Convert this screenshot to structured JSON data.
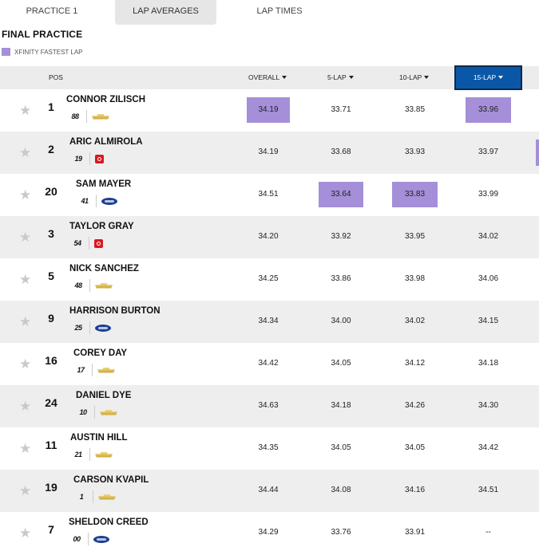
{
  "tabs": [
    {
      "label": "PRACTICE 1",
      "active": false
    },
    {
      "label": "LAP AVERAGES",
      "active": true
    },
    {
      "label": "LAP TIMES",
      "active": false
    }
  ],
  "session_title": "FINAL PRACTICE",
  "legend": {
    "label": "XFINITY FASTEST LAP",
    "color": "#a48fd8"
  },
  "columns": {
    "pos": "POS",
    "overall": "OVERALL",
    "lap5": "5-LAP",
    "lap10": "10-LAP",
    "lap15": "15-LAP",
    "active_sort": "15-LAP"
  },
  "colors": {
    "accent_blue": "#0a57a8",
    "fastest_purple": "#a48fd8",
    "row_alt": "#eeeeee"
  },
  "rows": [
    {
      "pos": "1",
      "driver": "CONNOR ZILISCH",
      "car_number": "88",
      "make": "chevrolet",
      "overall": "34.19",
      "lap5": "33.71",
      "lap10": "33.85",
      "lap15": "33.96",
      "fastest": [
        "overall",
        "lap15"
      ]
    },
    {
      "pos": "2",
      "driver": "ARIC ALMIROLA",
      "car_number": "19",
      "make": "toyota",
      "overall": "34.19",
      "lap5": "33.68",
      "lap10": "33.93",
      "lap15": "33.97",
      "fastest": []
    },
    {
      "pos": "20",
      "driver": "SAM MAYER",
      "car_number": "41",
      "make": "ford",
      "overall": "34.51",
      "lap5": "33.64",
      "lap10": "33.83",
      "lap15": "33.99",
      "fastest": [
        "lap5",
        "lap10"
      ]
    },
    {
      "pos": "3",
      "driver": "TAYLOR GRAY",
      "car_number": "54",
      "make": "toyota",
      "overall": "34.20",
      "lap5": "33.92",
      "lap10": "33.95",
      "lap15": "34.02",
      "fastest": []
    },
    {
      "pos": "5",
      "driver": "NICK SANCHEZ",
      "car_number": "48",
      "make": "chevrolet",
      "overall": "34.25",
      "lap5": "33.86",
      "lap10": "33.98",
      "lap15": "34.06",
      "fastest": []
    },
    {
      "pos": "9",
      "driver": "HARRISON BURTON",
      "car_number": "25",
      "make": "ford",
      "overall": "34.34",
      "lap5": "34.00",
      "lap10": "34.02",
      "lap15": "34.15",
      "fastest": []
    },
    {
      "pos": "16",
      "driver": "COREY DAY",
      "car_number": "17",
      "make": "chevrolet",
      "overall": "34.42",
      "lap5": "34.05",
      "lap10": "34.12",
      "lap15": "34.18",
      "fastest": []
    },
    {
      "pos": "24",
      "driver": "DANIEL DYE",
      "car_number": "10",
      "make": "chevrolet",
      "overall": "34.63",
      "lap5": "34.18",
      "lap10": "34.26",
      "lap15": "34.30",
      "fastest": []
    },
    {
      "pos": "11",
      "driver": "AUSTIN HILL",
      "car_number": "21",
      "make": "chevrolet",
      "overall": "34.35",
      "lap5": "34.05",
      "lap10": "34.05",
      "lap15": "34.42",
      "fastest": []
    },
    {
      "pos": "19",
      "driver": "CARSON KVAPIL",
      "car_number": "1",
      "make": "chevrolet",
      "overall": "34.44",
      "lap5": "34.08",
      "lap10": "34.16",
      "lap15": "34.51",
      "fastest": []
    },
    {
      "pos": "7",
      "driver": "SHELDON CREED",
      "car_number": "00",
      "make": "ford",
      "overall": "34.29",
      "lap5": "33.76",
      "lap10": "33.91",
      "lap15": "--",
      "fastest": []
    }
  ]
}
